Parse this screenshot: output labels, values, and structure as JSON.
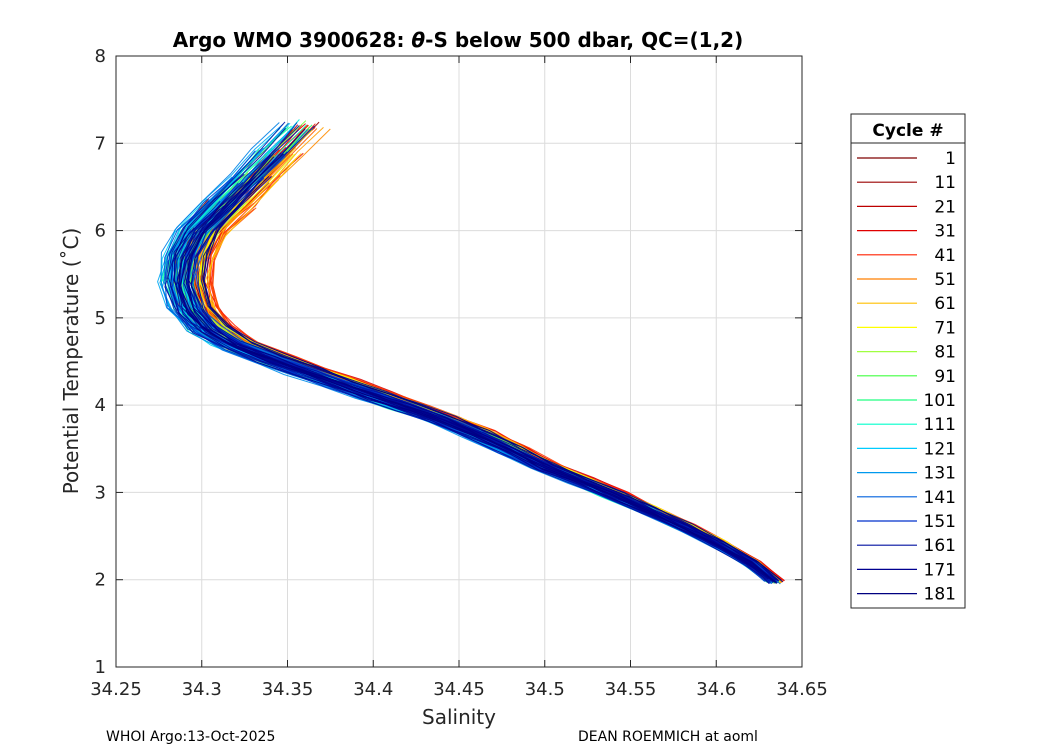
{
  "chart_data": {
    "type": "line",
    "title_parts": {
      "prefix": "Argo WMO 3900628: ",
      "theta": "θ",
      "suffix": "-S below 500 dbar,  QC=(1,2)"
    },
    "xlabel": "Salinity",
    "ylabel": "Potential Temperature (˚C)",
    "xlim": [
      34.25,
      34.65
    ],
    "ylim": [
      1,
      8
    ],
    "xticks": [
      34.25,
      34.3,
      34.35,
      34.4,
      34.45,
      34.5,
      34.55,
      34.6,
      34.65
    ],
    "xtick_labels": [
      "34.25",
      "34.3",
      "34.35",
      "34.4",
      "34.45",
      "34.5",
      "34.55",
      "34.6",
      "34.65"
    ],
    "yticks": [
      1,
      2,
      3,
      4,
      5,
      6,
      7,
      8
    ],
    "ytick_labels": [
      "1",
      "2",
      "3",
      "4",
      "5",
      "6",
      "7",
      "8"
    ],
    "grid": true,
    "legend": {
      "title": "Cycle #",
      "placement": "right",
      "entries": [
        {
          "label": "1",
          "color": "#7f0000"
        },
        {
          "label": "11",
          "color": "#9a0000"
        },
        {
          "label": "21",
          "color": "#bd0000"
        },
        {
          "label": "31",
          "color": "#e00000"
        },
        {
          "label": "41",
          "color": "#ff2000"
        },
        {
          "label": "51",
          "color": "#ff7f00"
        },
        {
          "label": "61",
          "color": "#ffbf00"
        },
        {
          "label": "71",
          "color": "#ffff00"
        },
        {
          "label": "81",
          "color": "#a0ff40"
        },
        {
          "label": "91",
          "color": "#40ff40"
        },
        {
          "label": "101",
          "color": "#20ff80"
        },
        {
          "label": "111",
          "color": "#00ffcc"
        },
        {
          "label": "121",
          "color": "#00ccff"
        },
        {
          "label": "131",
          "color": "#0099ee"
        },
        {
          "label": "141",
          "color": "#0060dd"
        },
        {
          "label": "151",
          "color": "#0030cc"
        },
        {
          "label": "161",
          "color": "#0010a0"
        },
        {
          "label": "171",
          "color": "#000090"
        },
        {
          "label": "181",
          "color": "#000080"
        }
      ]
    },
    "curve_template": {
      "salinity": [
        34.634,
        34.62,
        34.6,
        34.58,
        34.56,
        34.54,
        34.52,
        34.5,
        34.48,
        34.46,
        34.44,
        34.42,
        34.4,
        34.38,
        34.36,
        34.34,
        34.32,
        34.305,
        34.295,
        34.29,
        34.292,
        34.3,
        34.315,
        34.33,
        34.345,
        34.36
      ],
      "theta": [
        1.98,
        2.2,
        2.42,
        2.62,
        2.8,
        2.98,
        3.14,
        3.3,
        3.5,
        3.68,
        3.84,
        3.98,
        4.12,
        4.26,
        4.4,
        4.54,
        4.7,
        4.88,
        5.1,
        5.4,
        5.7,
        6.0,
        6.3,
        6.6,
        6.9,
        7.2
      ]
    }
  },
  "footer": {
    "left": "WHOI Argo:13-Oct-2025",
    "right": "DEAN ROEMMICH at aoml"
  }
}
